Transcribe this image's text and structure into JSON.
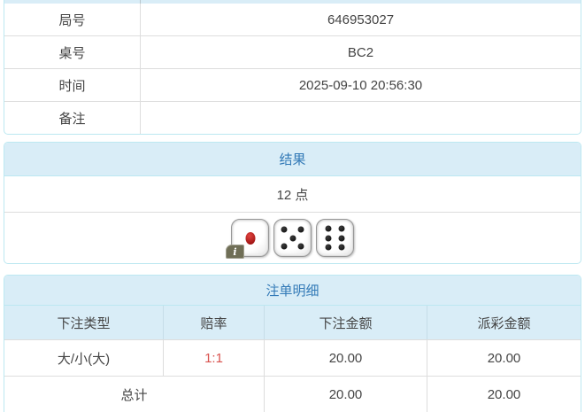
{
  "info_table": {
    "rows": [
      {
        "label": "局号",
        "value": "646953027"
      },
      {
        "label": "桌号",
        "value": "BC2"
      },
      {
        "label": "时间",
        "value": "2025-09-10 20:56:30"
      },
      {
        "label": "备注",
        "value": ""
      }
    ]
  },
  "result_panel": {
    "title": "结果",
    "points": "12 点",
    "dice": [
      1,
      5,
      6
    ],
    "info_badge": "i"
  },
  "bets_panel": {
    "title": "注单明细",
    "columns": [
      "下注类型",
      "赔率",
      "下注金额",
      "派彩金额"
    ],
    "rows": [
      {
        "type": "大/小(大)",
        "odds": "1:1",
        "bet": "20.00",
        "payout": "20.00"
      }
    ],
    "total": {
      "label": "总计",
      "bet": "20.00",
      "payout": "20.00"
    }
  },
  "colors": {
    "header_bg": "#d9edf7",
    "header_text": "#337ab7",
    "panel_border": "#bce8f1",
    "row_border": "#dddddd",
    "odds_red": "#d9534f",
    "body_text": "#444444"
  }
}
